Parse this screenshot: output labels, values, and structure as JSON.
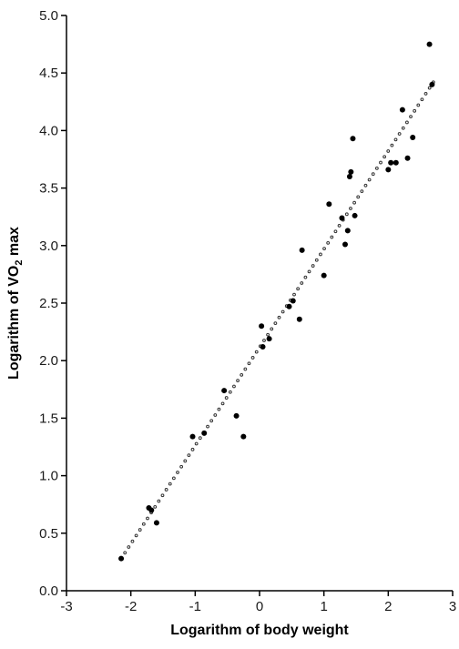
{
  "chart_data": {
    "type": "scatter",
    "xlabel": "Logarithm of body weight",
    "ylabel_parts": [
      "Logarithm of VO",
      "2",
      " max"
    ],
    "xlim": [
      -3,
      3
    ],
    "ylim": [
      0.0,
      5.0
    ],
    "x_ticks": [
      -3,
      -2,
      -1,
      0,
      1,
      2,
      3
    ],
    "x_tick_labels": [
      "-3",
      "-2",
      "-1",
      "0",
      "1",
      "2",
      "3"
    ],
    "y_ticks": [
      0.0,
      0.5,
      1.0,
      1.5,
      2.0,
      2.5,
      3.0,
      3.5,
      4.0,
      4.5,
      5.0
    ],
    "y_tick_labels": [
      "0.0",
      "0.5",
      "1.0",
      "1.5",
      "2.0",
      "2.5",
      "3.0",
      "3.5",
      "4.0",
      "4.5",
      "5.0"
    ],
    "grid": false,
    "colors": {
      "points": "#000000",
      "fit_line": "#333333",
      "axes": "#000000"
    },
    "fit_line": {
      "style": "dotted",
      "x": [
        -2.15,
        2.7
      ],
      "y": [
        0.28,
        4.42
      ]
    },
    "points": [
      {
        "x": -2.15,
        "y": 0.28
      },
      {
        "x": -1.72,
        "y": 0.72
      },
      {
        "x": -1.68,
        "y": 0.7
      },
      {
        "x": -1.6,
        "y": 0.59
      },
      {
        "x": -1.04,
        "y": 1.34
      },
      {
        "x": -0.86,
        "y": 1.37
      },
      {
        "x": -0.55,
        "y": 1.74
      },
      {
        "x": -0.36,
        "y": 1.52
      },
      {
        "x": -0.25,
        "y": 1.34
      },
      {
        "x": 0.03,
        "y": 2.3
      },
      {
        "x": 0.05,
        "y": 2.12
      },
      {
        "x": 0.15,
        "y": 2.19
      },
      {
        "x": 0.46,
        "y": 2.47
      },
      {
        "x": 0.52,
        "y": 2.52
      },
      {
        "x": 0.62,
        "y": 2.36
      },
      {
        "x": 0.66,
        "y": 2.96
      },
      {
        "x": 1.0,
        "y": 2.74
      },
      {
        "x": 1.08,
        "y": 3.36
      },
      {
        "x": 1.28,
        "y": 3.24
      },
      {
        "x": 1.33,
        "y": 3.01
      },
      {
        "x": 1.37,
        "y": 3.13
      },
      {
        "x": 1.4,
        "y": 3.6
      },
      {
        "x": 1.42,
        "y": 3.64
      },
      {
        "x": 1.45,
        "y": 3.93
      },
      {
        "x": 1.48,
        "y": 3.26
      },
      {
        "x": 2.0,
        "y": 3.66
      },
      {
        "x": 2.04,
        "y": 3.72
      },
      {
        "x": 2.12,
        "y": 3.72
      },
      {
        "x": 2.22,
        "y": 4.18
      },
      {
        "x": 2.3,
        "y": 3.76
      },
      {
        "x": 2.38,
        "y": 3.94
      },
      {
        "x": 2.64,
        "y": 4.75
      },
      {
        "x": 2.68,
        "y": 4.4
      }
    ]
  }
}
